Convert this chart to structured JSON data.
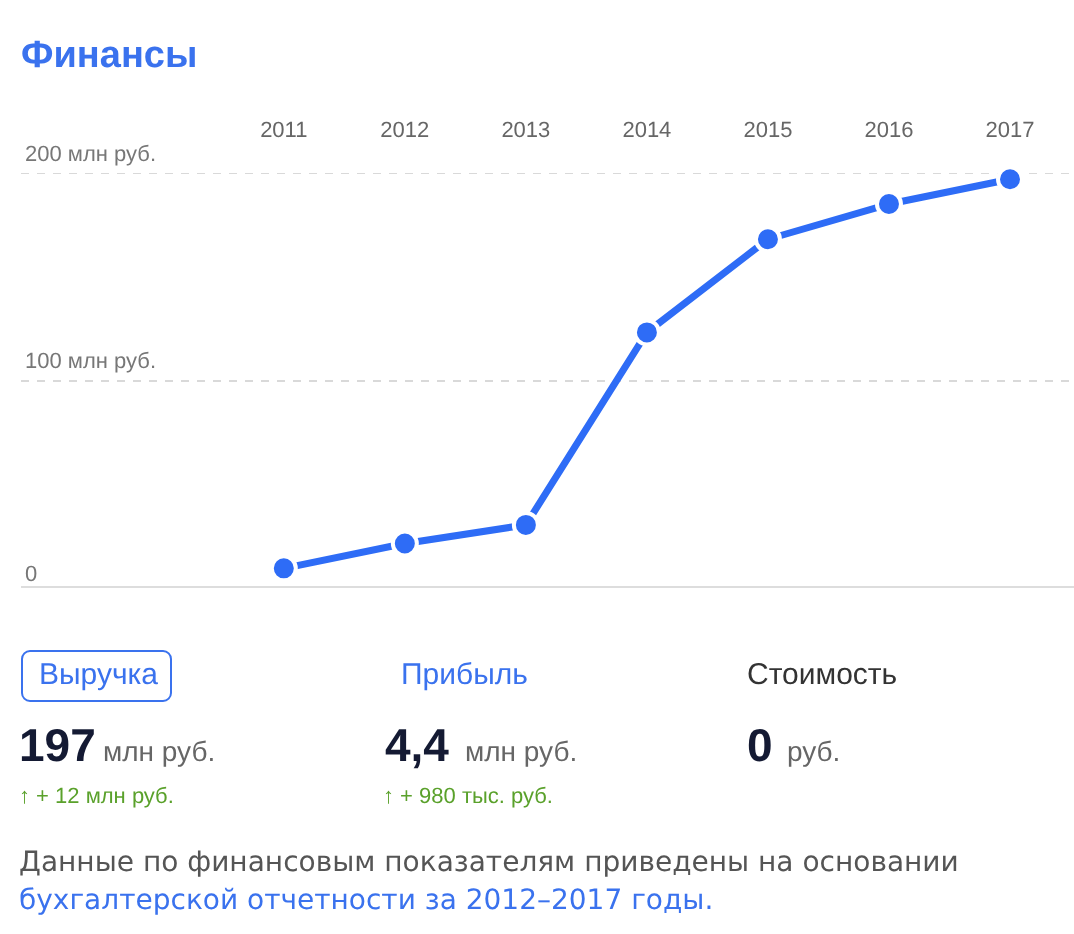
{
  "chart_data": {
    "type": "line",
    "title": "Финансы",
    "categories": [
      "2011",
      "2012",
      "2013",
      "2014",
      "2015",
      "2016",
      "2017"
    ],
    "series": [
      {
        "color": "#2e6cf6",
        "values": [
          9,
          21,
          30,
          123,
          168,
          185,
          197
        ]
      }
    ],
    "ylim": [
      0,
      200
    ],
    "yticks": [
      0,
      {
        "value": 100,
        "label": "100 млн руб."
      },
      {
        "value": 200,
        "label": "200 млн руб."
      }
    ],
    "grid": "y",
    "marker": "circle",
    "line_style": "solid",
    "annotations": [
      "Выручка",
      "Прибыль",
      "Стоимость",
      "197",
      "млн руб.",
      "4,4",
      "млн руб.",
      "0",
      "руб.",
      "↑ + 12 млн руб.",
      "↑ + 980 тыс. руб.",
      "Данные по финансовым показателям приведены на основании",
      "бухгалтерской отчетности за 2012–2017 годы."
    ]
  }
}
